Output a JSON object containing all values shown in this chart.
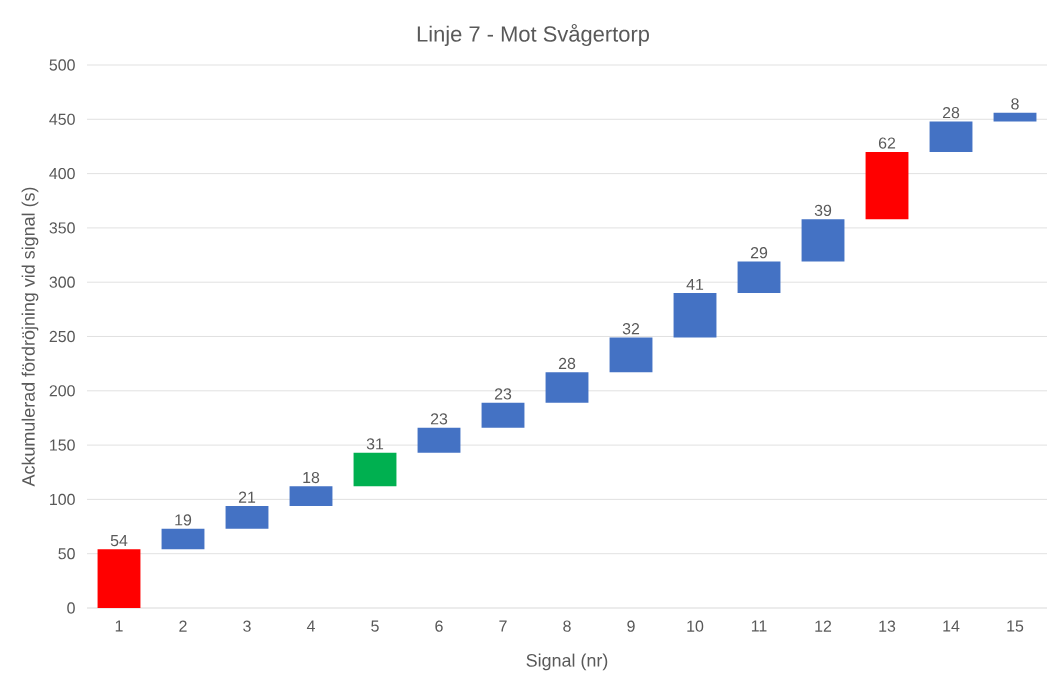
{
  "chart_data": {
    "type": "bar",
    "title": "Linje 7 - Mot Svågertorp",
    "xlabel": "Signal (nr)",
    "ylabel": "Ackumulerad fördröjning vid signal (s)",
    "categories": [
      "1",
      "2",
      "3",
      "4",
      "5",
      "6",
      "7",
      "8",
      "9",
      "10",
      "11",
      "12",
      "13",
      "14",
      "15"
    ],
    "values": [
      54,
      19,
      21,
      18,
      31,
      23,
      23,
      28,
      32,
      41,
      29,
      39,
      62,
      28,
      8
    ],
    "base": [
      0,
      54,
      73,
      94,
      112,
      143,
      166,
      189,
      217,
      249,
      290,
      319,
      358,
      420,
      448
    ],
    "colors": [
      "#ff0000",
      "#4472c4",
      "#4472c4",
      "#4472c4",
      "#00b050",
      "#4472c4",
      "#4472c4",
      "#4472c4",
      "#4472c4",
      "#4472c4",
      "#4472c4",
      "#4472c4",
      "#ff0000",
      "#4472c4",
      "#4472c4"
    ],
    "ylim": [
      0,
      500
    ],
    "yticks": [
      0,
      50,
      100,
      150,
      200,
      250,
      300,
      350,
      400,
      450,
      500
    ],
    "grid": "y",
    "data_labels": true
  }
}
